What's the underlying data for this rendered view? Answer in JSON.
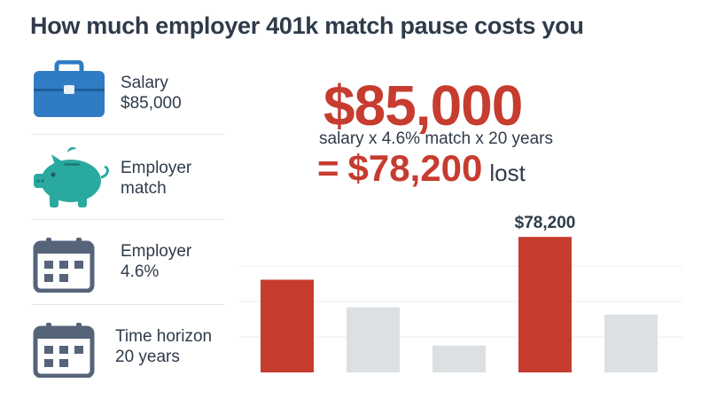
{
  "title": "How much employer 401k match pause costs you",
  "inputs": [
    {
      "icon": "briefcase-icon",
      "label_line1": "Salary",
      "label_line2": "$85,000"
    },
    {
      "icon": "piggy-bank-icon",
      "label_line1": "Employer",
      "label_line2": "match"
    },
    {
      "icon": "calendar-icon",
      "label_line1": "Employer",
      "label_line2": "4.6%"
    },
    {
      "icon": "calendar-icon",
      "label_line1": "Time horizon",
      "label_line2": "20 years"
    }
  ],
  "headline": {
    "amount": "$85,000",
    "formula": "salary x 4.6% match x 20 years",
    "equals": "=",
    "result": "$78,200",
    "result_suffix": "lost"
  },
  "colors": {
    "accent_red": "#c63c2f",
    "bar_gray": "#dde0e3",
    "briefcase_blue": "#2f7cc4",
    "piggy_teal": "#2aa9a0",
    "calendar_slate": "#56647a",
    "text": "#2f3b4a"
  },
  "chart_data": {
    "type": "bar",
    "title": "",
    "xlabel": "",
    "ylabel": "",
    "categories": [
      "",
      "",
      "",
      "",
      ""
    ],
    "values": [
      53500,
      37600,
      15500,
      78200,
      33400
    ],
    "bar_colors": [
      "#c63c2f",
      "#dde0e3",
      "#dde0e3",
      "#c63c2f",
      "#dde0e3"
    ],
    "data_labels": [
      "",
      "",
      "",
      "$78,200",
      ""
    ],
    "ylim": [
      0,
      87000
    ],
    "grid": true
  }
}
